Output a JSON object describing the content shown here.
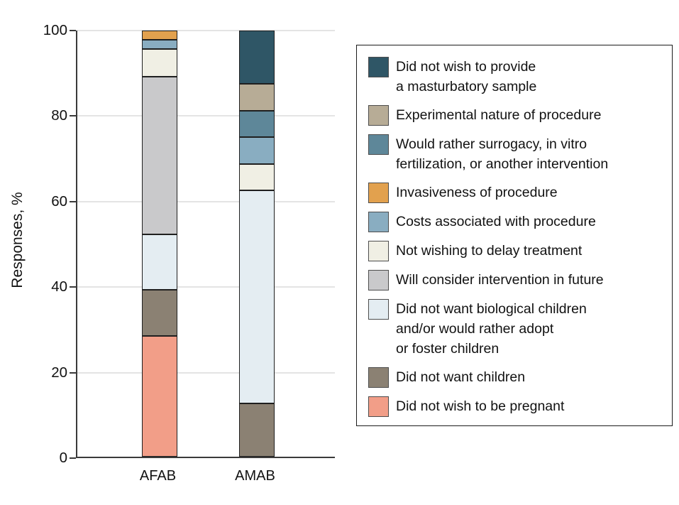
{
  "chart_data": {
    "type": "bar",
    "variant": "stacked-100-percent",
    "title": "",
    "xlabel": "",
    "ylabel": "Responses, %",
    "ylim": [
      0,
      100
    ],
    "yticks": [
      0,
      20,
      40,
      60,
      80,
      100
    ],
    "grid": "horizontal",
    "legend_position": "right",
    "categories": [
      "AFAB",
      "AMAB"
    ],
    "series": [
      {
        "name": "Did not wish to be pregnant",
        "color": "#f29e88",
        "values": [
          28.3,
          0
        ]
      },
      {
        "name": "Did not want children",
        "color": "#8b8173",
        "values": [
          10.9,
          12.5
        ]
      },
      {
        "name": "Did not want biological children and/or would rather adopt or foster children",
        "color": "#e4edf2",
        "values": [
          13.0,
          50.0
        ]
      },
      {
        "name": "Will consider intervention in future",
        "color": "#c9c9cb",
        "values": [
          37.0,
          0
        ]
      },
      {
        "name": "Not wishing to delay treatment",
        "color": "#f0efe4",
        "values": [
          6.5,
          6.25
        ]
      },
      {
        "name": "Costs associated with procedure",
        "color": "#89adc1",
        "values": [
          2.2,
          6.25
        ]
      },
      {
        "name": "Would rather surrogacy, in vitro fertilization, or another intervention",
        "color": "#5e8799",
        "values": [
          0,
          6.25
        ]
      },
      {
        "name": "Invasiveness of procedure",
        "color": "#e2a14e",
        "values": [
          2.2,
          0
        ]
      },
      {
        "name": "Experimental nature of procedure",
        "color": "#b7ac96",
        "values": [
          0,
          6.25
        ]
      },
      {
        "name": "Did not wish to provide a masturbatory sample",
        "color": "#2f5666",
        "values": [
          0,
          12.5
        ]
      }
    ],
    "legend": [
      {
        "color": "#2f5666",
        "lines": [
          "Did not wish to provide",
          "a masturbatory sample"
        ]
      },
      {
        "color": "#b7ac96",
        "lines": [
          "Experimental nature of procedure"
        ]
      },
      {
        "color": "#5e8799",
        "lines": [
          "Would rather surrogacy, in vitro",
          "fertilization, or another intervention"
        ]
      },
      {
        "color": "#e2a14e",
        "lines": [
          "Invasiveness of procedure"
        ]
      },
      {
        "color": "#89adc1",
        "lines": [
          "Costs associated with procedure"
        ]
      },
      {
        "color": "#f0efe4",
        "lines": [
          "Not wishing to delay treatment"
        ]
      },
      {
        "color": "#c9c9cb",
        "lines": [
          "Will consider intervention in future"
        ]
      },
      {
        "color": "#e4edf2",
        "lines": [
          "Did not want biological children",
          "and/or would rather adopt",
          "or foster children"
        ]
      },
      {
        "color": "#8b8173",
        "lines": [
          "Did not want children"
        ]
      },
      {
        "color": "#f29e88",
        "lines": [
          "Did not wish to be pregnant"
        ]
      }
    ],
    "colors": {
      "grid": "#e4e4e4",
      "axis": "#3a3a3a",
      "segment_border": "#1f1f1f",
      "text": "#121212",
      "background": "#ffffff"
    }
  }
}
